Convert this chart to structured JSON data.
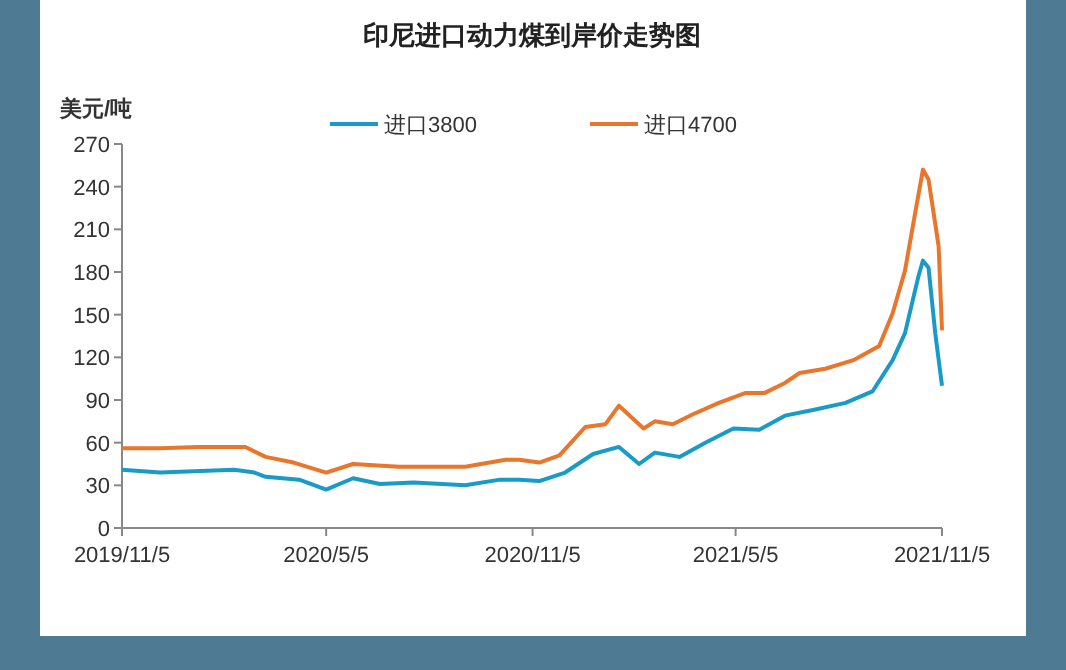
{
  "chart_data": {
    "type": "line",
    "title": "印尼进口动力煤到岸价走势图",
    "ylabel": "美元/吨",
    "legend": "top",
    "grid": false,
    "xlim": [
      "2019-11-05",
      "2021-11-05"
    ],
    "ylim": [
      0,
      270
    ],
    "xticks": [
      {
        "value": "2019-11-05",
        "label": "2019/11/5"
      },
      {
        "value": "2020-05-05",
        "label": "2020/5/5"
      },
      {
        "value": "2020-11-05",
        "label": "2020/11/5"
      },
      {
        "value": "2021-05-05",
        "label": "2021/5/5"
      },
      {
        "value": "2021-11-05",
        "label": "2021/11/5"
      }
    ],
    "yticks": [
      0,
      30,
      60,
      90,
      120,
      150,
      180,
      210,
      240,
      270
    ],
    "series": [
      {
        "name": "进口3800",
        "color": "#1a9bc7",
        "x": [
          "2019-11-05",
          "2019-12-09",
          "2020-02-13",
          "2020-03-02",
          "2020-03-12",
          "2020-04-11",
          "2020-05-05",
          "2020-05-29",
          "2020-06-22",
          "2020-07-22",
          "2020-09-06",
          "2020-10-07",
          "2020-10-24",
          "2020-11-11",
          "2020-12-04",
          "2020-12-29",
          "2021-01-21",
          "2021-02-08",
          "2021-02-22",
          "2021-03-16",
          "2021-04-08",
          "2021-05-03",
          "2021-05-26",
          "2021-06-18",
          "2021-07-13",
          "2021-08-11",
          "2021-09-04",
          "2021-09-22",
          "2021-10-03",
          "2021-10-15",
          "2021-10-19",
          "2021-10-24",
          "2021-10-30",
          "2021-11-05"
        ],
        "values": [
          41,
          39,
          41,
          39,
          36,
          34,
          27,
          35,
          31,
          32,
          30,
          34,
          34,
          33,
          39,
          52,
          57,
          45,
          53,
          50,
          60,
          70,
          69,
          79,
          83,
          88,
          96,
          118,
          137,
          177,
          188,
          183,
          137,
          100
        ]
      },
      {
        "name": "进口4700",
        "color": "#e8762c",
        "x": [
          "2019-11-05",
          "2019-12-09",
          "2020-01-13",
          "2020-02-23",
          "2020-03-12",
          "2020-04-06",
          "2020-05-05",
          "2020-05-29",
          "2020-07-09",
          "2020-09-06",
          "2020-10-12",
          "2020-10-24",
          "2020-11-11",
          "2020-11-29",
          "2020-12-22",
          "2021-01-09",
          "2021-01-21",
          "2021-02-12",
          "2021-02-22",
          "2021-03-10",
          "2021-03-28",
          "2021-04-20",
          "2021-05-14",
          "2021-05-31",
          "2021-06-18",
          "2021-07-01",
          "2021-07-24",
          "2021-08-18",
          "2021-09-10",
          "2021-09-22",
          "2021-10-03",
          "2021-10-12",
          "2021-10-19",
          "2021-10-24",
          "2021-11-02",
          "2021-11-05"
        ],
        "values": [
          56,
          56,
          57,
          57,
          50,
          46,
          39,
          45,
          43,
          43,
          48,
          48,
          46,
          51,
          71,
          73,
          86,
          70,
          75,
          73,
          80,
          88,
          95,
          95,
          102,
          109,
          112,
          118,
          128,
          151,
          181,
          221,
          252,
          245,
          198,
          139
        ]
      }
    ]
  }
}
